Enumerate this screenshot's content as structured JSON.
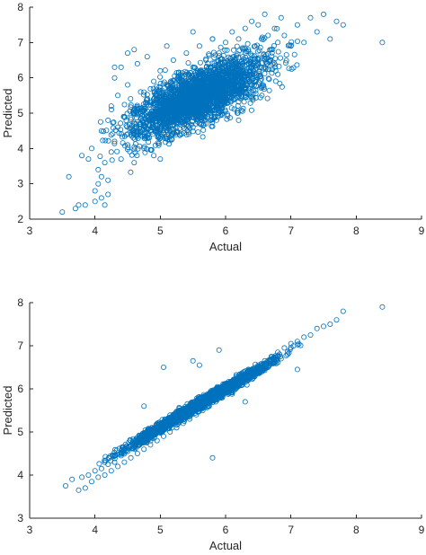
{
  "chart_data": [
    {
      "type": "scatter",
      "xlabel": "Actual",
      "ylabel": "Predicted",
      "xlim": [
        3,
        9
      ],
      "ylim": [
        2,
        8
      ],
      "xticks": [
        "3",
        "4",
        "5",
        "6",
        "7",
        "8",
        "9"
      ],
      "yticks": [
        "2",
        "3",
        "4",
        "5",
        "6",
        "7",
        "8"
      ],
      "marker": "open-circle",
      "color": "#0072BD",
      "grid": false,
      "legend": "none",
      "series": [
        {
          "points": [
            [
              3.5,
              2.2
            ],
            [
              3.6,
              3.2
            ],
            [
              3.7,
              2.3
            ],
            [
              3.75,
              2.4
            ],
            [
              3.8,
              3.8
            ],
            [
              3.85,
              2.4
            ],
            [
              3.9,
              3.7
            ],
            [
              3.95,
              4.0
            ],
            [
              4.0,
              2.5
            ],
            [
              4.0,
              2.8
            ],
            [
              4.05,
              3.0
            ],
            [
              4.05,
              3.4
            ],
            [
              4.1,
              2.6
            ],
            [
              4.1,
              3.2
            ],
            [
              4.1,
              4.5
            ],
            [
              4.15,
              2.4
            ],
            [
              4.15,
              3.6
            ],
            [
              4.2,
              2.7
            ],
            [
              4.2,
              3.1
            ],
            [
              4.2,
              4.8
            ],
            [
              4.25,
              3.9
            ],
            [
              4.25,
              5.2
            ],
            [
              4.3,
              4.2
            ],
            [
              4.3,
              6.0
            ],
            [
              4.35,
              4.6
            ],
            [
              4.35,
              5.5
            ],
            [
              4.4,
              3.7
            ],
            [
              4.4,
              6.3
            ],
            [
              4.45,
              4.9
            ],
            [
              4.5,
              4.1
            ],
            [
              4.5,
              5.8
            ],
            [
              4.55,
              4.4
            ],
            [
              4.6,
              5.0
            ],
            [
              4.6,
              3.6
            ],
            [
              4.65,
              6.4
            ],
            [
              4.7,
              4.7
            ],
            [
              4.7,
              5.6
            ],
            [
              4.75,
              4.0
            ],
            [
              4.8,
              5.3
            ],
            [
              4.8,
              6.6
            ],
            [
              4.85,
              4.5
            ],
            [
              4.9,
              5.9
            ],
            [
              4.9,
              3.8
            ],
            [
              4.95,
              5.1
            ],
            [
              5.0,
              4.3
            ],
            [
              5.0,
              6.2
            ],
            [
              5.05,
              5.4
            ],
            [
              5.1,
              4.6
            ],
            [
              5.1,
              6.9
            ],
            [
              5.15,
              5.7
            ],
            [
              5.2,
              4.8
            ],
            [
              5.2,
              6.5
            ],
            [
              5.25,
              5.2
            ],
            [
              5.3,
              4.4
            ],
            [
              5.3,
              6.0
            ],
            [
              5.35,
              5.5
            ],
            [
              5.4,
              4.9
            ],
            [
              5.4,
              6.7
            ],
            [
              5.45,
              5.8
            ],
            [
              5.5,
              4.6
            ],
            [
              5.5,
              6.3
            ],
            [
              5.55,
              5.3
            ],
            [
              5.6,
              5.0
            ],
            [
              5.6,
              6.9
            ],
            [
              5.65,
              5.9
            ],
            [
              5.7,
              4.7
            ],
            [
              5.7,
              6.5
            ],
            [
              5.75,
              5.6
            ],
            [
              5.8,
              5.2
            ],
            [
              5.8,
              7.1
            ],
            [
              5.85,
              6.1
            ],
            [
              5.9,
              5.0
            ],
            [
              5.9,
              6.7
            ],
            [
              5.95,
              5.7
            ],
            [
              6.0,
              5.4
            ],
            [
              6.0,
              7.0
            ],
            [
              6.05,
              6.2
            ],
            [
              6.1,
              5.6
            ],
            [
              6.1,
              7.3
            ],
            [
              6.15,
              6.5
            ],
            [
              6.2,
              5.8
            ],
            [
              6.2,
              7.1
            ],
            [
              6.25,
              6.4
            ],
            [
              6.3,
              5.5
            ],
            [
              6.3,
              7.4
            ],
            [
              6.35,
              6.8
            ],
            [
              6.4,
              6.1
            ],
            [
              6.4,
              7.6
            ],
            [
              6.45,
              6.9
            ],
            [
              6.5,
              6.4
            ],
            [
              6.5,
              7.5
            ],
            [
              6.55,
              7.1
            ],
            [
              6.6,
              6.6
            ],
            [
              6.6,
              7.8
            ],
            [
              6.65,
              7.2
            ],
            [
              6.7,
              6.8
            ],
            [
              6.75,
              7.4
            ],
            [
              6.8,
              7.0
            ],
            [
              6.85,
              7.7
            ],
            [
              6.9,
              7.2
            ],
            [
              7.0,
              6.9
            ],
            [
              7.1,
              7.5
            ],
            [
              7.2,
              7.0
            ],
            [
              7.3,
              7.7
            ],
            [
              7.4,
              7.3
            ],
            [
              7.5,
              7.8
            ],
            [
              7.6,
              7.1
            ],
            [
              7.7,
              7.6
            ],
            [
              7.8,
              7.5
            ],
            [
              8.4,
              7.0
            ],
            [
              4.6,
              6.8
            ],
            [
              4.5,
              6.7
            ],
            [
              5.5,
              7.3
            ],
            [
              5.8,
              7.1
            ],
            [
              6.2,
              4.8
            ],
            [
              5.0,
              3.7
            ],
            [
              4.3,
              6.3
            ],
            [
              6.8,
              6.1
            ]
          ]
        }
      ]
    },
    {
      "type": "scatter",
      "xlabel": "Actual",
      "ylabel": "Predicted",
      "xlim": [
        3,
        9
      ],
      "ylim": [
        3,
        8
      ],
      "xticks": [
        "3",
        "4",
        "5",
        "6",
        "7",
        "8",
        "9"
      ],
      "yticks": [
        "3",
        "4",
        "5",
        "6",
        "7",
        "8"
      ],
      "marker": "open-circle",
      "color": "#0072BD",
      "grid": false,
      "legend": "none",
      "series": [
        {
          "points": [
            [
              3.55,
              3.75
            ],
            [
              3.65,
              3.9
            ],
            [
              3.75,
              3.65
            ],
            [
              3.8,
              3.95
            ],
            [
              3.85,
              3.7
            ],
            [
              3.9,
              4.0
            ],
            [
              3.95,
              3.85
            ],
            [
              4.0,
              4.1
            ],
            [
              4.05,
              3.95
            ],
            [
              4.1,
              4.15
            ],
            [
              4.15,
              4.0
            ],
            [
              4.2,
              4.25
            ],
            [
              4.25,
              4.1
            ],
            [
              4.3,
              4.3
            ],
            [
              4.35,
              4.2
            ],
            [
              4.4,
              4.45
            ],
            [
              4.45,
              4.3
            ],
            [
              4.5,
              4.55
            ],
            [
              4.55,
              4.4
            ],
            [
              4.6,
              4.65
            ],
            [
              4.65,
              4.5
            ],
            [
              4.7,
              4.75
            ],
            [
              4.75,
              4.6
            ],
            [
              4.8,
              4.85
            ],
            [
              4.85,
              4.7
            ],
            [
              4.9,
              4.95
            ],
            [
              4.95,
              4.8
            ],
            [
              5.0,
              5.05
            ],
            [
              5.05,
              4.9
            ],
            [
              5.1,
              5.15
            ],
            [
              5.15,
              5.0
            ],
            [
              5.2,
              5.25
            ],
            [
              5.25,
              5.1
            ],
            [
              5.3,
              5.35
            ],
            [
              5.35,
              5.2
            ],
            [
              5.4,
              5.45
            ],
            [
              5.45,
              5.3
            ],
            [
              5.5,
              5.55
            ],
            [
              5.55,
              5.4
            ],
            [
              5.6,
              5.65
            ],
            [
              5.65,
              5.5
            ],
            [
              5.7,
              5.75
            ],
            [
              5.75,
              5.6
            ],
            [
              5.8,
              5.85
            ],
            [
              5.85,
              5.7
            ],
            [
              5.9,
              5.95
            ],
            [
              5.95,
              5.8
            ],
            [
              6.0,
              6.05
            ],
            [
              6.05,
              5.9
            ],
            [
              6.1,
              6.15
            ],
            [
              6.15,
              6.0
            ],
            [
              6.2,
              6.25
            ],
            [
              6.25,
              6.1
            ],
            [
              6.3,
              6.35
            ],
            [
              6.35,
              6.2
            ],
            [
              6.4,
              6.45
            ],
            [
              6.45,
              6.3
            ],
            [
              6.5,
              6.55
            ],
            [
              6.55,
              6.4
            ],
            [
              6.6,
              6.65
            ],
            [
              6.65,
              6.5
            ],
            [
              6.7,
              6.75
            ],
            [
              6.75,
              6.6
            ],
            [
              6.8,
              6.85
            ],
            [
              6.85,
              6.7
            ],
            [
              6.9,
              6.95
            ],
            [
              6.95,
              6.8
            ],
            [
              7.0,
              7.05
            ],
            [
              7.1,
              7.1
            ],
            [
              7.2,
              7.2
            ],
            [
              7.3,
              7.25
            ],
            [
              7.4,
              7.4
            ],
            [
              7.5,
              7.45
            ],
            [
              7.6,
              7.5
            ],
            [
              7.7,
              7.6
            ],
            [
              7.8,
              7.8
            ],
            [
              8.4,
              7.9
            ],
            [
              5.05,
              6.5
            ],
            [
              5.5,
              6.65
            ],
            [
              5.6,
              6.55
            ],
            [
              5.8,
              4.4
            ],
            [
              4.75,
              5.6
            ],
            [
              7.1,
              6.45
            ],
            [
              5.9,
              6.9
            ],
            [
              6.3,
              5.7
            ]
          ]
        }
      ]
    }
  ]
}
